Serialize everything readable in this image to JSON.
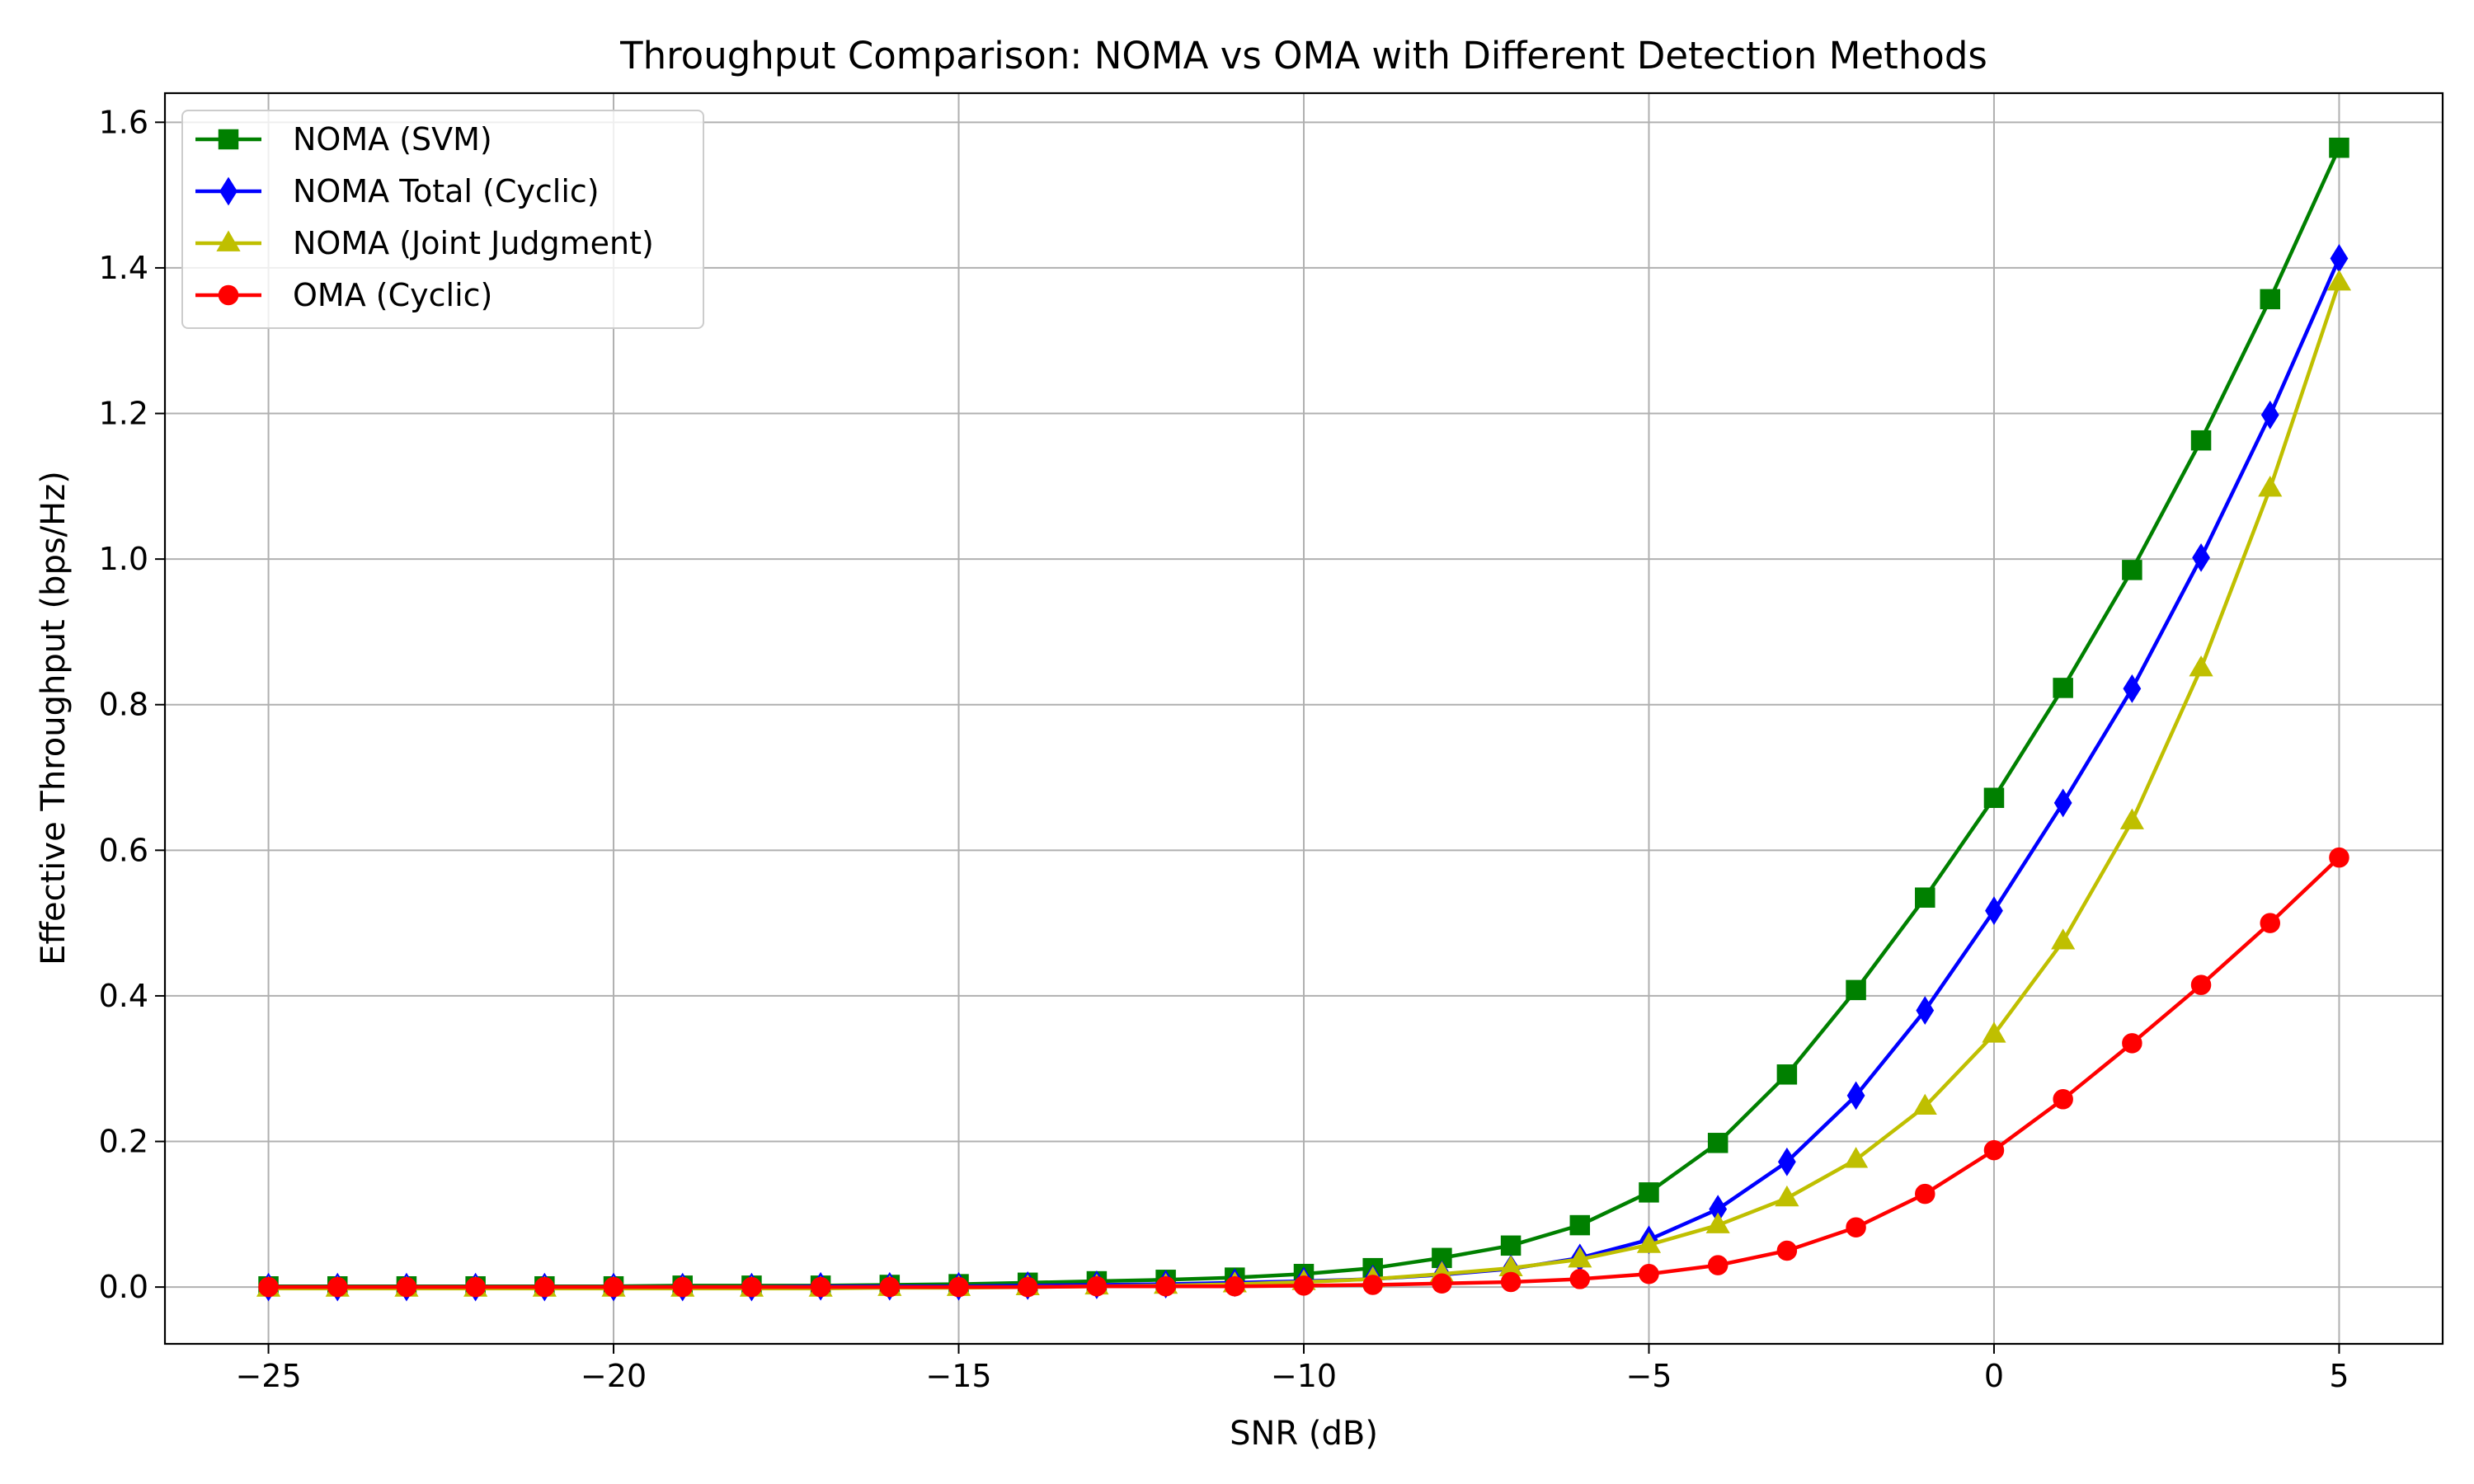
{
  "chart_data": {
    "type": "line",
    "title": "Throughput Comparison: NOMA vs OMA with Different Detection Methods",
    "xlabel": "SNR (dB)",
    "ylabel": "Effective Throughput (bps/Hz)",
    "xlim": [
      -26.5,
      6.5
    ],
    "ylim": [
      -0.078,
      1.64
    ],
    "xticks": [
      -25,
      -20,
      -15,
      -10,
      -5,
      0,
      5
    ],
    "xtick_labels": [
      "−25",
      "−20",
      "−15",
      "−10",
      "−5",
      "0",
      "5"
    ],
    "yticks": [
      0.0,
      0.2,
      0.4,
      0.6,
      0.8,
      1.0,
      1.2,
      1.4,
      1.6
    ],
    "ytick_labels": [
      "0.0",
      "0.2",
      "0.4",
      "0.6",
      "0.8",
      "1.0",
      "1.2",
      "1.4",
      "1.6"
    ],
    "grid": true,
    "legend_position": "top-left",
    "x": [
      -25,
      -24,
      -23,
      -22,
      -21,
      -20,
      -19,
      -18,
      -17,
      -16,
      -15,
      -14,
      -13,
      -12,
      -11,
      -10,
      -9,
      -8,
      -7,
      -6,
      -5,
      -4,
      -3,
      -2,
      -1,
      0,
      1,
      2,
      3,
      4,
      5
    ],
    "series": [
      {
        "name": "NOMA (SVM)",
        "color": "#008000",
        "marker": "square",
        "values": [
          0.001,
          0.001,
          0.001,
          0.001,
          0.001,
          0.001,
          0.002,
          0.002,
          0.002,
          0.003,
          0.004,
          0.006,
          0.008,
          0.01,
          0.013,
          0.018,
          0.026,
          0.04,
          0.057,
          0.085,
          0.13,
          0.198,
          0.292,
          0.408,
          0.535,
          0.672,
          0.823,
          0.985,
          1.163,
          1.357,
          1.565
        ]
      },
      {
        "name": "NOMA Total (Cyclic)",
        "color": "#0000ff",
        "marker": "thin_diamond",
        "values": [
          0.0,
          0.0,
          0.0,
          0.0,
          0.0,
          0.0,
          0.0,
          0.0,
          0.001,
          0.001,
          0.001,
          0.002,
          0.003,
          0.004,
          0.006,
          0.008,
          0.011,
          0.017,
          0.025,
          0.04,
          0.065,
          0.107,
          0.172,
          0.263,
          0.38,
          0.517,
          0.665,
          0.822,
          1.002,
          1.198,
          1.413
        ]
      },
      {
        "name": "NOMA (Joint Judgment)",
        "color": "#bfbf00",
        "marker": "triangle",
        "values": [
          -0.002,
          -0.002,
          -0.002,
          -0.002,
          -0.002,
          -0.002,
          -0.002,
          -0.002,
          -0.002,
          -0.001,
          -0.001,
          0.0,
          0.001,
          0.002,
          0.004,
          0.007,
          0.011,
          0.018,
          0.026,
          0.038,
          0.058,
          0.085,
          0.122,
          0.175,
          0.248,
          0.347,
          0.475,
          0.64,
          0.85,
          1.097,
          1.38
        ]
      },
      {
        "name": "OMA (Cyclic)",
        "color": "#ff0000",
        "marker": "circle",
        "values": [
          0.0,
          0.0,
          0.0,
          0.0,
          0.0,
          0.0,
          0.0,
          0.0,
          0.0,
          0.0,
          0.0,
          0.0,
          0.001,
          0.001,
          0.001,
          0.002,
          0.003,
          0.005,
          0.007,
          0.011,
          0.018,
          0.03,
          0.05,
          0.082,
          0.128,
          0.188,
          0.258,
          0.335,
          0.415,
          0.5,
          0.59
        ]
      }
    ]
  }
}
